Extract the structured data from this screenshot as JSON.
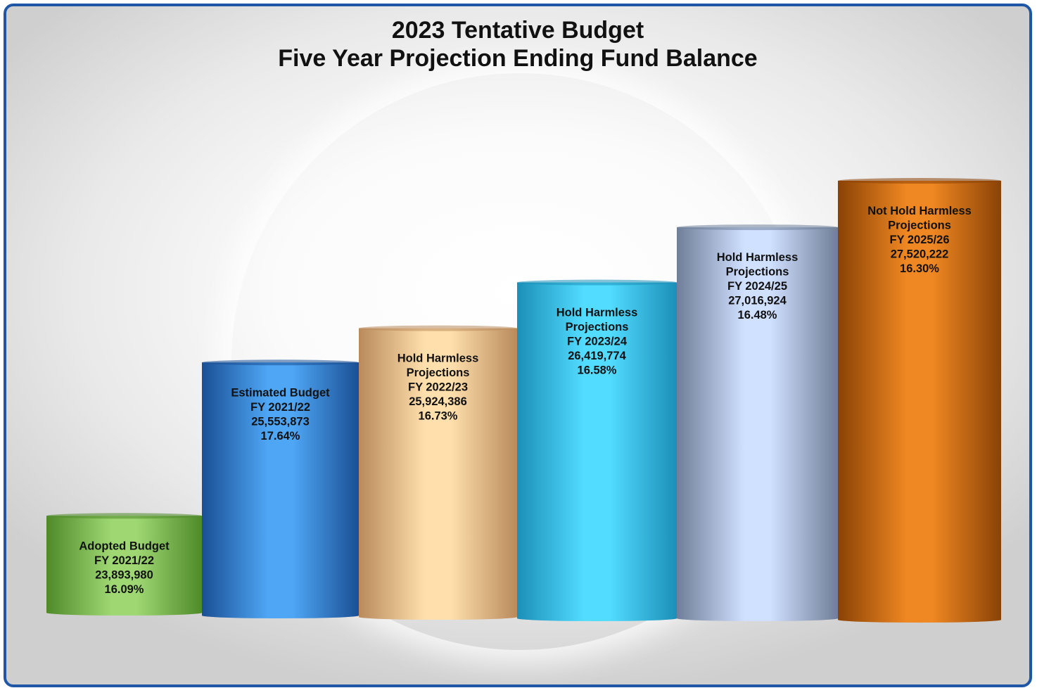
{
  "chart_data": {
    "type": "bar",
    "title": "2023 Tentative Budget",
    "subtitle": "Five Year Projection Ending Fund Balance",
    "xlabel": "",
    "ylabel": "",
    "grid": false,
    "ylim": [
      22800000,
      28000000
    ],
    "categories": [
      "Adopted Budget FY 2021/22",
      "Estimated Budget FY 2021/22",
      "Hold Harmless Projections FY 2022/23",
      "Hold Harmless Projections FY 2023/24",
      "Hold Harmless Projections FY 2024/25",
      "Not Hold Harmless Projections FY 2025/26"
    ],
    "values": [
      23893980,
      25553873,
      25924386,
      26419774,
      27016924,
      27520222
    ],
    "bars": [
      {
        "lines": [
          "Adopted Budget",
          "FY 2021/22",
          "23,893,980",
          "16.09%"
        ],
        "value": 23893980,
        "color_dark": "#4f8a2a",
        "color_light": "#9fd873"
      },
      {
        "lines": [
          "Estimated Budget",
          "FY 2021/22",
          "25,553,873",
          "17.64%"
        ],
        "value": 25553873,
        "color_dark": "#1a4f94",
        "color_light": "#4ea6f5"
      },
      {
        "lines": [
          "Hold Harmless",
          "Projections",
          "FY 2022/23",
          "25,924,386",
          "16.73%"
        ],
        "value": 25924386,
        "color_dark": "#b98a5c",
        "color_light": "#ffe0ad"
      },
      {
        "lines": [
          "Hold Harmless",
          "Projections",
          "FY 2023/24",
          "26,419,774",
          "16.58%"
        ],
        "value": 26419774,
        "color_dark": "#1b8fb8",
        "color_light": "#52dcff"
      },
      {
        "lines": [
          "Hold Harmless",
          "Projections",
          "FY 2024/25",
          "27,016,924",
          "16.48%"
        ],
        "value": 27016924,
        "color_dark": "#6f7f99",
        "color_light": "#d0e0ff"
      },
      {
        "lines": [
          "Not Hold Harmless",
          "Projections",
          "FY 2025/26",
          "27,520,222",
          "16.30%"
        ],
        "value": 27520222,
        "color_dark": "#8a4205",
        "color_light": "#ef8722"
      }
    ]
  },
  "colors": {
    "frame_border": "#1f57a6",
    "background": "#e6e6e6"
  }
}
